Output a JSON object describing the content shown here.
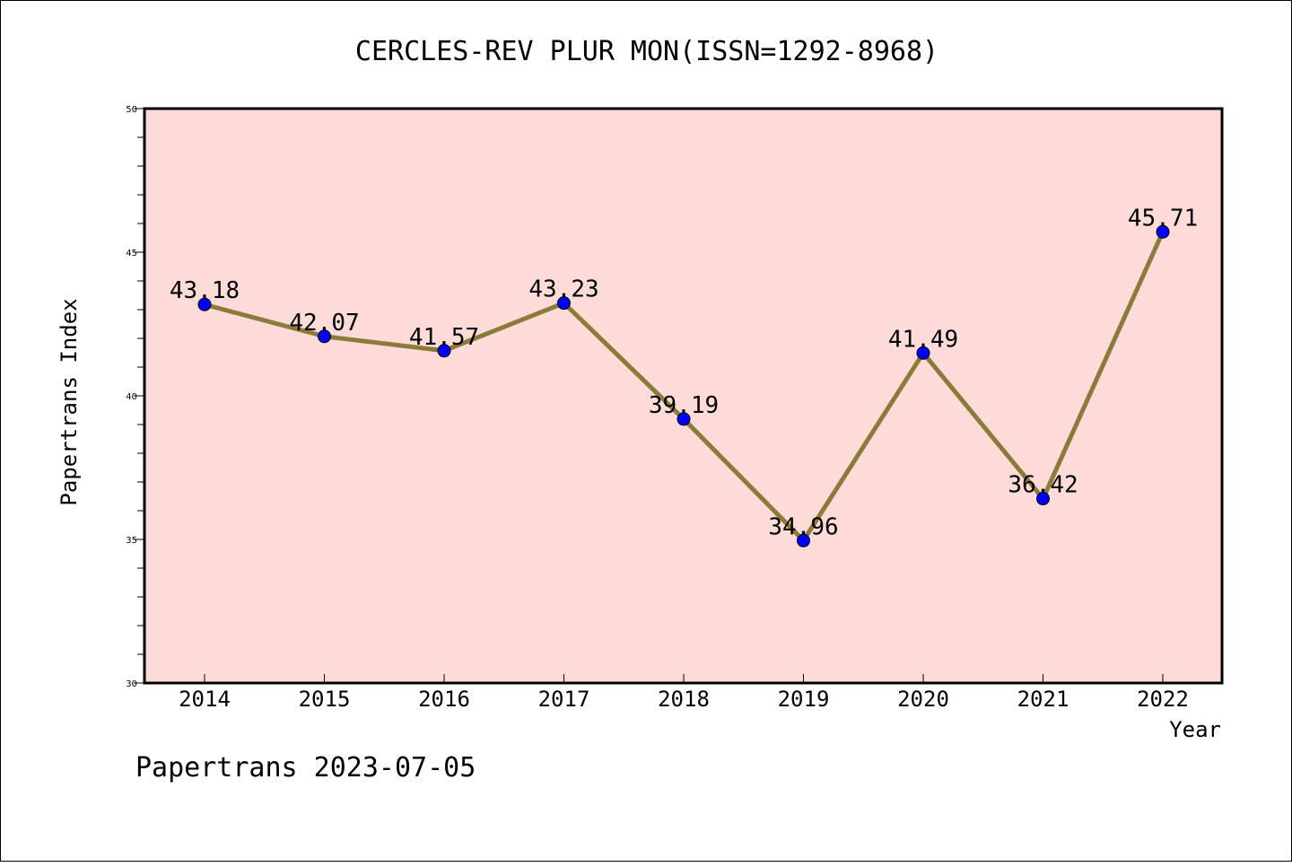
{
  "chart_data": {
    "type": "line",
    "title": "CERCLES-REV PLUR MON(ISSN=1292-8968)",
    "xlabel": "Year",
    "ylabel": "Papertrans Index",
    "categories": [
      "2014",
      "2015",
      "2016",
      "2017",
      "2018",
      "2019",
      "2020",
      "2021",
      "2022"
    ],
    "series": [
      {
        "values": [
          43.18,
          42.07,
          41.57,
          43.23,
          39.19,
          34.96,
          41.49,
          36.42,
          45.71
        ],
        "labels": [
          "43.18",
          "42.07",
          "41.57",
          "43.23",
          "39.19",
          "34.96",
          "41.49",
          "36.42",
          "45.71"
        ]
      }
    ],
    "ylim": [
      30,
      50
    ],
    "yticks": [
      "30",
      "35",
      "40",
      "45",
      "50"
    ],
    "colors": {
      "plot_background": "#fddbd8",
      "line": "#8b7b3a",
      "marker": "#0000ff"
    },
    "grid": false,
    "legend": "none"
  },
  "footer": {
    "text": "Papertrans 2023-07-05"
  }
}
